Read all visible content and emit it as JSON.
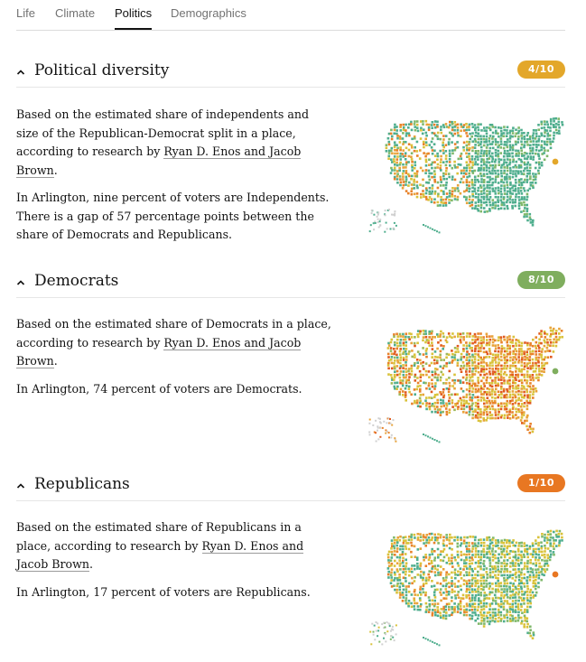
{
  "tabs": [
    {
      "label": "Life",
      "active": false
    },
    {
      "label": "Climate",
      "active": false
    },
    {
      "label": "Politics",
      "active": true
    },
    {
      "label": "Demographics",
      "active": false
    }
  ],
  "sections": [
    {
      "title": "Political diversity",
      "score": "4/10",
      "badge_color": "#e3a72a",
      "p1_text": "Based on the estimated share of independents and size of the Republican-Democrat split in a place, according to research by",
      "link_text": "Ryan D. Enos and Jacob Brown",
      "p1_end": ".",
      "p2_text": "In Arlington, nine percent of voters are Independents. There is a gap of 57 percentage points between the share of Democrats and Republicans.",
      "map_icon": "us-political-diversity-map-icon"
    },
    {
      "title": "Democrats",
      "score": "8/10",
      "badge_color": "#7fae5e",
      "p1_text": "Based on the estimated share of Democrats in a place, according to research by",
      "link_text": "Ryan D. Enos and Jacob Brown",
      "p1_end": ".",
      "p2_text": "In Arlington, 74 percent of voters are Democrats.",
      "map_icon": "us-democrats-map-icon"
    },
    {
      "title": "Republicans",
      "score": "1/10",
      "badge_color": "#e87722",
      "p1_text": "Based on the estimated share of Republicans in a place, according to research by",
      "link_text": "Ryan D. Enos and Jacob Brown",
      "p1_end": ".",
      "p2_text": "In Arlington, 17 percent of voters are Republicans.",
      "map_icon": "us-republicans-map-icon"
    }
  ],
  "colors": {
    "teal": "#4fae8e",
    "yellow": "#d9c23a",
    "orange": "#e8822a",
    "red_orange": "#e05a1e"
  }
}
